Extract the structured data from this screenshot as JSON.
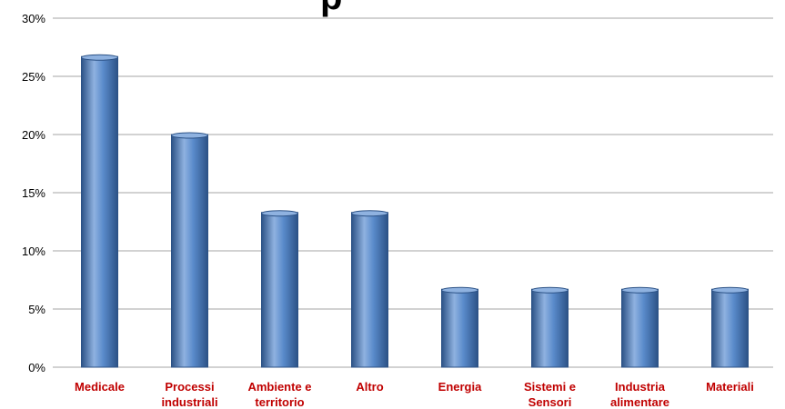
{
  "chart_data": {
    "type": "bar",
    "title_fragment": "p",
    "categories": [
      [
        "Medicale"
      ],
      [
        "Processi",
        "industriali"
      ],
      [
        "Ambiente e",
        "territorio"
      ],
      [
        "Altro"
      ],
      [
        "Energia"
      ],
      [
        "Sistemi e",
        "Sensori"
      ],
      [
        "Industria",
        "alimentare"
      ],
      [
        "Materiali"
      ]
    ],
    "values": [
      26.7,
      20.0,
      13.3,
      13.3,
      6.7,
      6.7,
      6.7,
      6.7
    ],
    "ylim": [
      0,
      30
    ],
    "yticks": [
      0,
      5,
      10,
      15,
      20,
      25,
      30
    ],
    "ytick_labels": [
      "0%",
      "5%",
      "10%",
      "15%",
      "20%",
      "25%",
      "30%"
    ],
    "grid": true,
    "colors": {
      "bar": "#4f81bd",
      "bar_dark": "#2c5286",
      "bar_light": "#8fb2e0",
      "category_label": "#c00000",
      "grid": "#a6a6a6"
    }
  }
}
